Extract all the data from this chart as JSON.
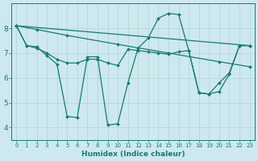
{
  "xlabel": "Humidex (Indice chaleur)",
  "bg_color": "#cde8f0",
  "line_color": "#1a7a6e",
  "grid_color": "#b0d8cc",
  "xlim": [
    -0.5,
    23.5
  ],
  "ylim": [
    3.5,
    9.0
  ],
  "yticks": [
    4,
    5,
    6,
    7,
    8
  ],
  "xticks": [
    0,
    1,
    2,
    3,
    4,
    5,
    6,
    7,
    8,
    9,
    10,
    11,
    12,
    13,
    14,
    15,
    16,
    17,
    18,
    19,
    20,
    21,
    22,
    23
  ],
  "curves": [
    {
      "x": [
        0,
        1,
        2,
        3,
        4,
        5,
        6,
        7,
        8,
        9,
        10,
        11,
        12,
        13,
        14,
        15,
        16,
        17,
        18,
        19,
        20,
        21,
        22,
        23
      ],
      "y": [
        8.1,
        7.3,
        7.25,
        6.9,
        6.55,
        4.45,
        4.4,
        6.85,
        6.85,
        4.1,
        4.15,
        5.8,
        7.2,
        7.6,
        8.4,
        8.6,
        8.55,
        7.1,
        5.4,
        5.35,
        5.8,
        6.2,
        7.3,
        7.3
      ]
    },
    {
      "x": [
        0,
        2,
        5,
        10,
        15,
        20,
        23
      ],
      "y": [
        8.1,
        7.95,
        7.71,
        7.35,
        7.0,
        6.65,
        6.45
      ]
    },
    {
      "x": [
        0,
        1,
        2,
        3,
        4,
        5,
        6,
        7,
        8,
        9,
        10,
        11,
        12,
        13,
        14,
        15,
        16,
        17,
        18,
        19,
        20,
        21,
        22,
        23
      ],
      "y": [
        8.1,
        7.3,
        7.2,
        7.0,
        6.75,
        6.6,
        6.6,
        6.75,
        6.75,
        6.6,
        6.5,
        7.15,
        7.1,
        7.05,
        7.0,
        6.95,
        7.05,
        7.1,
        5.4,
        5.35,
        5.45,
        6.15,
        7.3,
        7.3
      ]
    },
    {
      "x": [
        0,
        23
      ],
      "y": [
        8.1,
        7.3
      ]
    }
  ]
}
